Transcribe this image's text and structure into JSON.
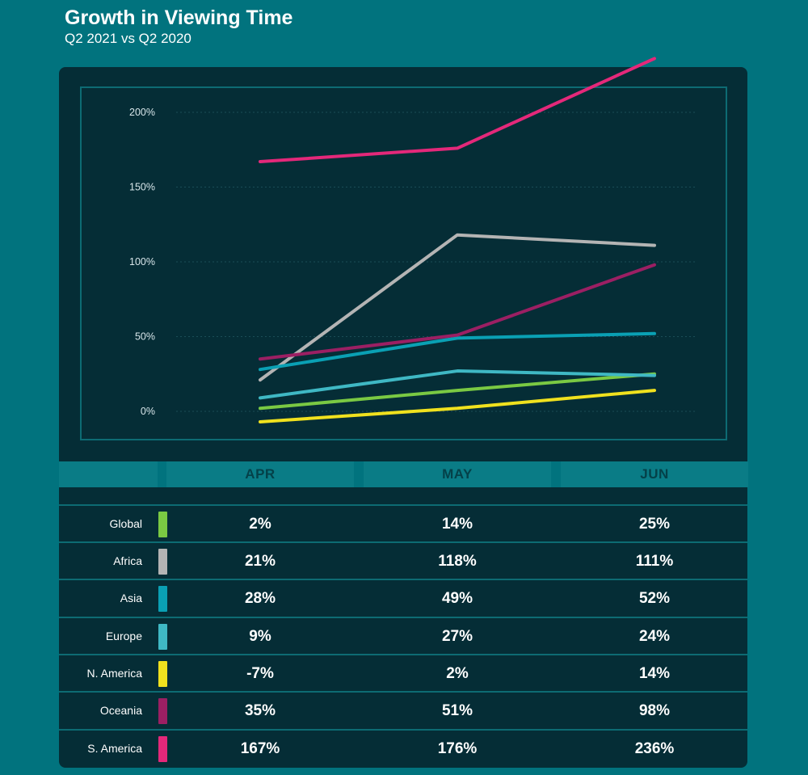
{
  "chart_data": {
    "type": "line",
    "title": "Growth in Viewing Time",
    "subtitle": "Q2 2021 vs Q2 2020",
    "categories": [
      "APR",
      "MAY",
      "JUN"
    ],
    "ylim": [
      -10,
      240
    ],
    "yticks": [
      0,
      50,
      100,
      150,
      200
    ],
    "ytick_labels": [
      "0%",
      "50%",
      "100%",
      "150%",
      "200%"
    ],
    "xlabel": "",
    "ylabel": "",
    "grid": true,
    "series": [
      {
        "name": "Global",
        "color": "#7ac943",
        "values": [
          2,
          14,
          25
        ],
        "labels": [
          "2%",
          "14%",
          "25%"
        ]
      },
      {
        "name": "Africa",
        "color": "#b4b4b4",
        "values": [
          21,
          118,
          111
        ],
        "labels": [
          "21%",
          "118%",
          "111%"
        ]
      },
      {
        "name": "Asia",
        "color": "#0aa0b4",
        "values": [
          28,
          49,
          52
        ],
        "labels": [
          "28%",
          "49%",
          "52%"
        ]
      },
      {
        "name": "Europe",
        "color": "#3fb8c4",
        "values": [
          9,
          27,
          24
        ],
        "labels": [
          "9%",
          "27%",
          "24%"
        ]
      },
      {
        "name": "N. America",
        "color": "#f0e11e",
        "values": [
          -7,
          2,
          14
        ],
        "labels": [
          "-7%",
          "2%",
          "14%"
        ]
      },
      {
        "name": "Oceania",
        "color": "#9b1f63",
        "values": [
          35,
          51,
          98
        ],
        "labels": [
          "35%",
          "51%",
          "98%"
        ]
      },
      {
        "name": "S. America",
        "color": "#e4287a",
        "values": [
          167,
          176,
          236
        ],
        "labels": [
          "167%",
          "176%",
          "236%"
        ]
      }
    ]
  }
}
